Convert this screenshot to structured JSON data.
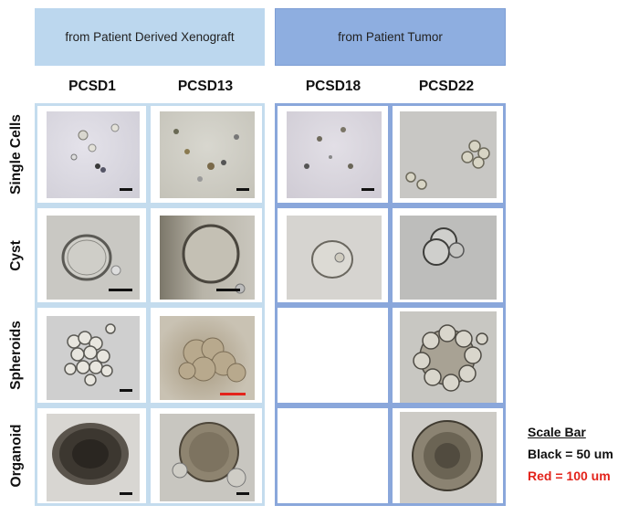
{
  "groups": {
    "xenograft": "from Patient Derived Xenograft",
    "tumor": "from Patient Tumor"
  },
  "columns": [
    "PCSD1",
    "PCSD13",
    "PCSD18",
    "PCSD22"
  ],
  "rows": [
    "Single Cells",
    "Cyst",
    "Spheroids",
    "Organoid"
  ],
  "legend": {
    "title": "Scale Bar",
    "black": "Black = 50 um",
    "red": "Red = 100 um"
  },
  "colors": {
    "xenograft_banner": "#bcd7ee",
    "tumor_banner": "#8eaee0",
    "xenograft_border": "#c4dcee",
    "tumor_border": "#8aa7db",
    "scale_black": "#111111",
    "scale_red": "#e3231b"
  }
}
